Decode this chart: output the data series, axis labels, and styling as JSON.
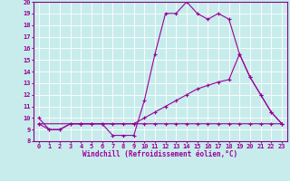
{
  "xlabel": "Windchill (Refroidissement éolien,°C)",
  "background_color": "#c8ecec",
  "grid_color": "#ffffff",
  "line_color": "#990099",
  "tick_color": "#990099",
  "spine_color": "#880088",
  "xlim": [
    -0.5,
    23.5
  ],
  "ylim": [
    8,
    20
  ],
  "xticks": [
    0,
    1,
    2,
    3,
    4,
    5,
    6,
    7,
    8,
    9,
    10,
    11,
    12,
    13,
    14,
    15,
    16,
    17,
    18,
    19,
    20,
    21,
    22,
    23
  ],
  "yticks": [
    8,
    9,
    10,
    11,
    12,
    13,
    14,
    15,
    16,
    17,
    18,
    19,
    20
  ],
  "line1_x": [
    0,
    1,
    2,
    3,
    4,
    5,
    6,
    7,
    8,
    9,
    10,
    11,
    12,
    13,
    14,
    15,
    16,
    17,
    18,
    19,
    20,
    21,
    22,
    23
  ],
  "line1_y": [
    10.0,
    9.0,
    9.0,
    9.5,
    9.5,
    9.5,
    9.5,
    8.5,
    8.5,
    8.5,
    11.5,
    15.5,
    19.0,
    19.0,
    20.0,
    19.0,
    18.5,
    19.0,
    18.5,
    15.5,
    13.5,
    12.0,
    10.5,
    9.5
  ],
  "line2_x": [
    0,
    1,
    2,
    3,
    4,
    5,
    6,
    7,
    8,
    9,
    10,
    11,
    12,
    13,
    14,
    15,
    16,
    17,
    18,
    19,
    20,
    21,
    22,
    23
  ],
  "line2_y": [
    9.5,
    9.0,
    9.0,
    9.5,
    9.5,
    9.5,
    9.5,
    9.5,
    9.5,
    9.5,
    9.5,
    9.5,
    9.5,
    9.5,
    9.5,
    9.5,
    9.5,
    9.5,
    9.5,
    9.5,
    9.5,
    9.5,
    9.5,
    9.5
  ],
  "line3_x": [
    0,
    4,
    9,
    10,
    11,
    12,
    13,
    14,
    15,
    16,
    17,
    18,
    19,
    20,
    21,
    22,
    23
  ],
  "line3_y": [
    9.5,
    9.5,
    9.5,
    10.0,
    10.5,
    11.0,
    11.5,
    12.0,
    12.5,
    12.8,
    13.1,
    13.3,
    15.5,
    13.5,
    12.0,
    10.5,
    9.5
  ],
  "label_fontsize": 5,
  "xlabel_fontsize": 5.5
}
